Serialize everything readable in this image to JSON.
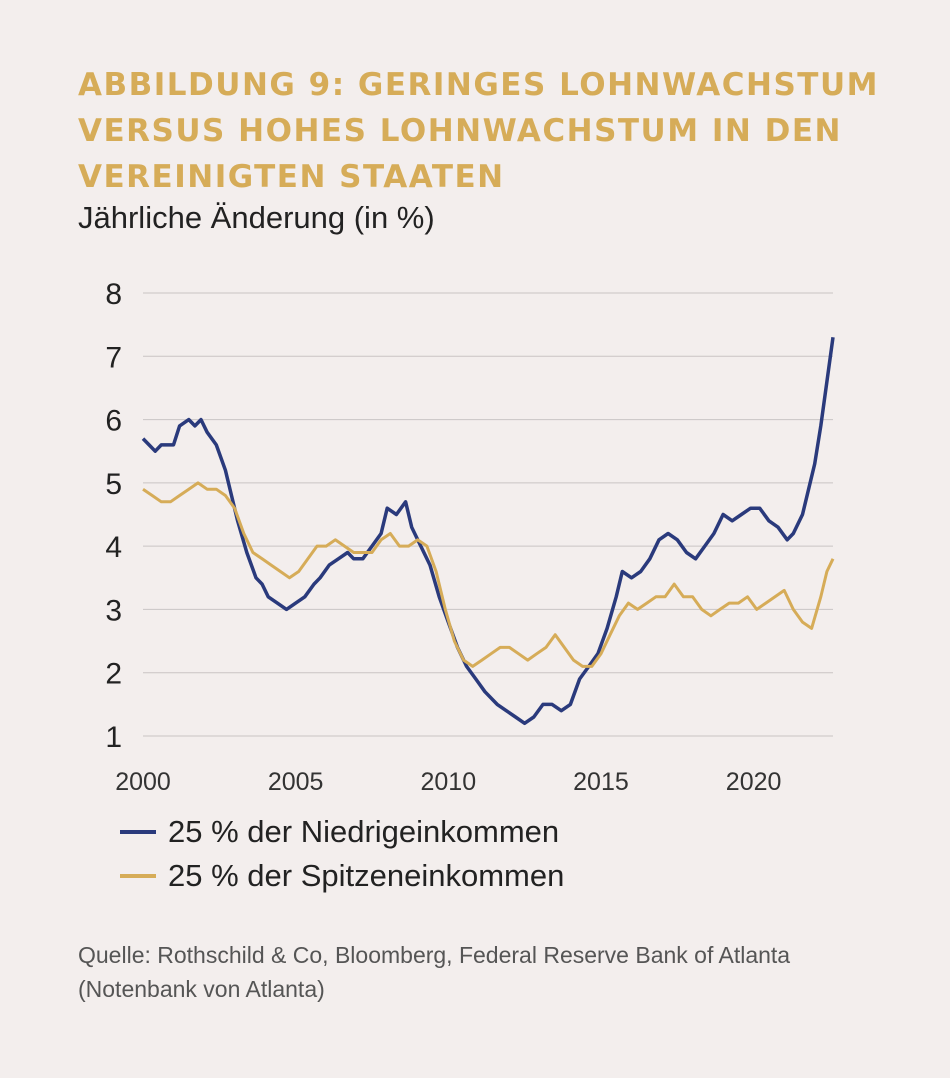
{
  "title_lines": [
    "ABBILDUNG 9: GERINGES LOHNWACHSTUM",
    "VERSUS HOHES LOHNWACHSTUM IN DEN",
    "VEREINIGTEN STAATEN"
  ],
  "subtitle": "Jährliche Änderung (in %)",
  "legend": {
    "low": "25 % der Niedrigeinkommen",
    "high": "25 % der Spitzeneinkommen"
  },
  "source_lines": [
    "Quelle: Rothschild & Co, Bloomberg, Federal Reserve Bank of Atlanta",
    "(Notenbank von Atlanta)"
  ],
  "colors": {
    "low": "#2a3a7c",
    "high": "#d6ac58",
    "title": "#d6ac58",
    "grid": "#c9c4c4"
  },
  "chart_data": {
    "type": "line",
    "xlim": [
      2000,
      2022.6
    ],
    "ylim": [
      1,
      8
    ],
    "x_ticks": [
      2000,
      2005,
      2010,
      2015,
      2020
    ],
    "y_ticks": [
      1,
      2,
      3,
      4,
      5,
      6,
      7,
      8
    ],
    "grid": "horizontal",
    "legend_position": "bottom-left",
    "series": [
      {
        "name": "25 % der Niedrigeinkommen",
        "color": "#2a3a7c",
        "points": [
          [
            2000.0,
            5.7
          ],
          [
            2000.2,
            5.6
          ],
          [
            2000.4,
            5.5
          ],
          [
            2000.6,
            5.6
          ],
          [
            2000.8,
            5.6
          ],
          [
            2001.0,
            5.6
          ],
          [
            2001.2,
            5.9
          ],
          [
            2001.5,
            6.0
          ],
          [
            2001.7,
            5.9
          ],
          [
            2001.9,
            6.0
          ],
          [
            2002.1,
            5.8
          ],
          [
            2002.4,
            5.6
          ],
          [
            2002.7,
            5.2
          ],
          [
            2002.9,
            4.8
          ],
          [
            2003.1,
            4.4
          ],
          [
            2003.4,
            3.9
          ],
          [
            2003.7,
            3.5
          ],
          [
            2003.9,
            3.4
          ],
          [
            2004.1,
            3.2
          ],
          [
            2004.4,
            3.1
          ],
          [
            2004.7,
            3.0
          ],
          [
            2005.0,
            3.1
          ],
          [
            2005.3,
            3.2
          ],
          [
            2005.6,
            3.4
          ],
          [
            2005.8,
            3.5
          ],
          [
            2006.1,
            3.7
          ],
          [
            2006.4,
            3.8
          ],
          [
            2006.7,
            3.9
          ],
          [
            2006.9,
            3.8
          ],
          [
            2007.2,
            3.8
          ],
          [
            2007.5,
            4.0
          ],
          [
            2007.8,
            4.2
          ],
          [
            2008.0,
            4.6
          ],
          [
            2008.3,
            4.5
          ],
          [
            2008.6,
            4.7
          ],
          [
            2008.8,
            4.3
          ],
          [
            2009.1,
            4.0
          ],
          [
            2009.4,
            3.7
          ],
          [
            2009.7,
            3.2
          ],
          [
            2010.0,
            2.8
          ],
          [
            2010.3,
            2.4
          ],
          [
            2010.6,
            2.1
          ],
          [
            2010.9,
            1.9
          ],
          [
            2011.2,
            1.7
          ],
          [
            2011.6,
            1.5
          ],
          [
            2011.9,
            1.4
          ],
          [
            2012.2,
            1.3
          ],
          [
            2012.5,
            1.2
          ],
          [
            2012.8,
            1.3
          ],
          [
            2013.1,
            1.5
          ],
          [
            2013.4,
            1.5
          ],
          [
            2013.7,
            1.4
          ],
          [
            2014.0,
            1.5
          ],
          [
            2014.3,
            1.9
          ],
          [
            2014.6,
            2.1
          ],
          [
            2014.9,
            2.3
          ],
          [
            2015.2,
            2.7
          ],
          [
            2015.5,
            3.2
          ],
          [
            2015.7,
            3.6
          ],
          [
            2016.0,
            3.5
          ],
          [
            2016.3,
            3.6
          ],
          [
            2016.6,
            3.8
          ],
          [
            2016.9,
            4.1
          ],
          [
            2017.2,
            4.2
          ],
          [
            2017.5,
            4.1
          ],
          [
            2017.8,
            3.9
          ],
          [
            2018.1,
            3.8
          ],
          [
            2018.4,
            4.0
          ],
          [
            2018.7,
            4.2
          ],
          [
            2019.0,
            4.5
          ],
          [
            2019.3,
            4.4
          ],
          [
            2019.6,
            4.5
          ],
          [
            2019.9,
            4.6
          ],
          [
            2020.2,
            4.6
          ],
          [
            2020.5,
            4.4
          ],
          [
            2020.8,
            4.3
          ],
          [
            2021.1,
            4.1
          ],
          [
            2021.3,
            4.2
          ],
          [
            2021.6,
            4.5
          ],
          [
            2021.8,
            4.9
          ],
          [
            2022.0,
            5.3
          ],
          [
            2022.2,
            5.9
          ],
          [
            2022.4,
            6.6
          ],
          [
            2022.6,
            7.3
          ]
        ]
      },
      {
        "name": "25 % der Spitzeneinkommen",
        "color": "#d6ac58",
        "points": [
          [
            2000.0,
            4.9
          ],
          [
            2000.3,
            4.8
          ],
          [
            2000.6,
            4.7
          ],
          [
            2000.9,
            4.7
          ],
          [
            2001.2,
            4.8
          ],
          [
            2001.5,
            4.9
          ],
          [
            2001.8,
            5.0
          ],
          [
            2002.1,
            4.9
          ],
          [
            2002.4,
            4.9
          ],
          [
            2002.7,
            4.8
          ],
          [
            2003.0,
            4.6
          ],
          [
            2003.3,
            4.2
          ],
          [
            2003.6,
            3.9
          ],
          [
            2003.9,
            3.8
          ],
          [
            2004.2,
            3.7
          ],
          [
            2004.5,
            3.6
          ],
          [
            2004.8,
            3.5
          ],
          [
            2005.1,
            3.6
          ],
          [
            2005.4,
            3.8
          ],
          [
            2005.7,
            4.0
          ],
          [
            2006.0,
            4.0
          ],
          [
            2006.3,
            4.1
          ],
          [
            2006.6,
            4.0
          ],
          [
            2006.9,
            3.9
          ],
          [
            2007.2,
            3.9
          ],
          [
            2007.5,
            3.9
          ],
          [
            2007.8,
            4.1
          ],
          [
            2008.1,
            4.2
          ],
          [
            2008.4,
            4.0
          ],
          [
            2008.7,
            4.0
          ],
          [
            2009.0,
            4.1
          ],
          [
            2009.3,
            4.0
          ],
          [
            2009.6,
            3.6
          ],
          [
            2009.9,
            3.0
          ],
          [
            2010.2,
            2.5
          ],
          [
            2010.5,
            2.2
          ],
          [
            2010.8,
            2.1
          ],
          [
            2011.1,
            2.2
          ],
          [
            2011.4,
            2.3
          ],
          [
            2011.7,
            2.4
          ],
          [
            2012.0,
            2.4
          ],
          [
            2012.3,
            2.3
          ],
          [
            2012.6,
            2.2
          ],
          [
            2012.9,
            2.3
          ],
          [
            2013.2,
            2.4
          ],
          [
            2013.5,
            2.6
          ],
          [
            2013.8,
            2.4
          ],
          [
            2014.1,
            2.2
          ],
          [
            2014.4,
            2.1
          ],
          [
            2014.7,
            2.1
          ],
          [
            2015.0,
            2.3
          ],
          [
            2015.3,
            2.6
          ],
          [
            2015.6,
            2.9
          ],
          [
            2015.9,
            3.1
          ],
          [
            2016.2,
            3.0
          ],
          [
            2016.5,
            3.1
          ],
          [
            2016.8,
            3.2
          ],
          [
            2017.1,
            3.2
          ],
          [
            2017.4,
            3.4
          ],
          [
            2017.7,
            3.2
          ],
          [
            2018.0,
            3.2
          ],
          [
            2018.3,
            3.0
          ],
          [
            2018.6,
            2.9
          ],
          [
            2018.9,
            3.0
          ],
          [
            2019.2,
            3.1
          ],
          [
            2019.5,
            3.1
          ],
          [
            2019.8,
            3.2
          ],
          [
            2020.1,
            3.0
          ],
          [
            2020.4,
            3.1
          ],
          [
            2020.7,
            3.2
          ],
          [
            2021.0,
            3.3
          ],
          [
            2021.3,
            3.0
          ],
          [
            2021.6,
            2.8
          ],
          [
            2021.9,
            2.7
          ],
          [
            2022.2,
            3.2
          ],
          [
            2022.4,
            3.6
          ],
          [
            2022.6,
            3.8
          ]
        ]
      }
    ]
  }
}
